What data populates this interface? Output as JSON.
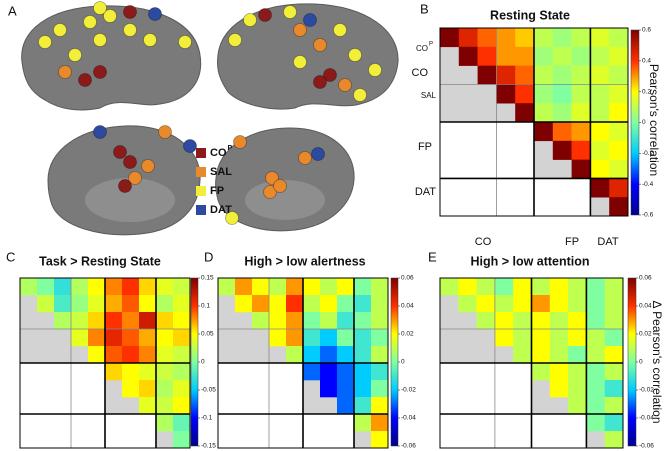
{
  "brain_panel": {
    "panel": "A",
    "legend": [
      {
        "label": "CO",
        "sup": "P",
        "color": "#8b1a1a"
      },
      {
        "label": "SAL",
        "color": "#e8892c"
      },
      {
        "label": "FP",
        "color": "#f3ee3a"
      },
      {
        "label": "DAT",
        "color": "#2b4aa0"
      }
    ]
  },
  "chart_data": [
    {
      "type": "heatmap",
      "panel": "B",
      "title": "Resting State",
      "row_labels": [
        {
          "label": "CO",
          "sup": "P"
        },
        {
          "label": "CO"
        },
        {
          "label": "SAL"
        },
        {
          "label": "FP"
        },
        {
          "label": "DAT"
        }
      ],
      "col_labels": [
        "CO",
        "FP",
        "DAT"
      ],
      "values": [
        [
          0.6,
          0.45,
          0.35,
          0.3,
          0.25,
          0.1,
          0.05,
          0.1,
          0.15,
          0.1
        ],
        [
          0.6,
          0.4,
          0.3,
          0.3,
          0.05,
          0.1,
          0.05,
          0.1,
          0.15
        ],
        [
          0.6,
          0.45,
          0.35,
          0.1,
          0.05,
          0.1,
          0.15,
          0.1
        ],
        [
          0.6,
          0.4,
          0.05,
          0,
          0.1,
          0.1,
          0.15
        ],
        [
          0.6,
          0.1,
          0.05,
          0.15,
          0.1,
          0.2
        ],
        [
          0.6,
          0.35,
          0.3,
          0.2,
          0.15
        ],
        [
          0.6,
          0.4,
          0.15,
          0.2
        ],
        [
          0.6,
          0.2,
          0.15
        ],
        [
          0.6,
          0.45
        ],
        [
          0.6
        ]
      ],
      "clim": [
        -0.6,
        0.6
      ],
      "cticks": [
        -0.6,
        -0.4,
        -0.2,
        0,
        0.2,
        0.4,
        0.6
      ],
      "colorbar_label": "Pearson's correlation",
      "colormap": [
        "#00008f",
        "#0000ff",
        "#00ccff",
        "#7fffa0",
        "#ffff00",
        "#ff3000",
        "#7f0000"
      ]
    },
    {
      "type": "heatmap",
      "panel": "C",
      "title": "Task > Resting State",
      "values": [
        [
          0.02,
          0,
          -0.03,
          0.02,
          0.05,
          0.08,
          0.1,
          0.06,
          0.04,
          0.03
        ],
        [
          0.03,
          -0.02,
          0.01,
          0.04,
          0.07,
          0.09,
          0.05,
          0.02,
          0.04
        ],
        [
          0.02,
          0.03,
          0.06,
          0.1,
          0.08,
          0.12,
          0.06,
          0.05
        ],
        [
          0.04,
          0.08,
          0.11,
          0.09,
          0.07,
          0.05,
          0.06
        ],
        [
          0.05,
          0.09,
          0.1,
          0.08,
          0.04,
          0.03
        ],
        [
          0.06,
          0.05,
          0.04,
          0.03,
          0.02
        ],
        [
          0.05,
          0.06,
          0.02,
          0.04
        ],
        [
          0.04,
          0.03,
          0.05
        ],
        [
          0.02,
          -0.01
        ],
        [
          0
        ]
      ],
      "clim": [
        -0.15,
        0.15
      ],
      "cticks": [
        -0.15,
        -0.1,
        -0.05,
        0,
        0.05,
        0.1,
        0.15
      ],
      "colormap": [
        "#00008f",
        "#0000ff",
        "#00ccff",
        "#7fffa0",
        "#ffff00",
        "#ff3000",
        "#7f0000"
      ]
    },
    {
      "type": "heatmap",
      "panel": "D",
      "title": "High > low alertness",
      "values": [
        [
          0.01,
          0.03,
          0.02,
          0.01,
          0.03,
          0.02,
          0.01,
          0.02,
          0,
          0.01
        ],
        [
          0.02,
          0.03,
          0.02,
          0.04,
          0.01,
          0.02,
          0,
          -0.01,
          0.01
        ],
        [
          0.01,
          0.02,
          0.03,
          0,
          0.01,
          -0.01,
          0,
          0.01
        ],
        [
          0.02,
          0.03,
          -0.01,
          -0.02,
          0,
          -0.01,
          0
        ],
        [
          0.01,
          -0.02,
          -0.03,
          -0.02,
          -0.01,
          0.01
        ],
        [
          -0.03,
          -0.04,
          -0.03,
          -0.02,
          -0.01
        ],
        [
          -0.04,
          -0.03,
          -0.02,
          0
        ],
        [
          -0.03,
          -0.01,
          0.02
        ],
        [
          0.01,
          0.03
        ],
        [
          0.02
        ]
      ],
      "clim": [
        -0.06,
        0.06
      ],
      "cticks": [
        -0.06,
        -0.04,
        -0.02,
        0,
        0.02,
        0.04,
        0.06
      ],
      "colormap": [
        "#00008f",
        "#0000ff",
        "#00ccff",
        "#7fffa0",
        "#ffff00",
        "#ff3000",
        "#7f0000"
      ]
    },
    {
      "type": "heatmap",
      "panel": "E",
      "title": "High > low attention",
      "values": [
        [
          0.01,
          0.02,
          0.01,
          0,
          0.02,
          0.01,
          0.02,
          0.01,
          0,
          0.01
        ],
        [
          0.01,
          0.02,
          0.01,
          0.02,
          0.03,
          0.02,
          0.01,
          0,
          0.01
        ],
        [
          0.01,
          0.02,
          0.01,
          0.02,
          0.01,
          0.02,
          0,
          0.01
        ],
        [
          0.02,
          0.01,
          0.02,
          0.01,
          0.02,
          0.01,
          0
        ],
        [
          0.01,
          0.02,
          0.01,
          0,
          0.01,
          0.02
        ],
        [
          0.01,
          0.02,
          0.01,
          0,
          0.01
        ],
        [
          0.02,
          0.01,
          0,
          -0.01
        ],
        [
          0.01,
          0,
          0.01
        ],
        [
          0,
          -0.01
        ],
        [
          0.01
        ]
      ],
      "clim": [
        -0.06,
        0.06
      ],
      "cticks": [
        -0.06,
        -0.04,
        -0.02,
        0,
        0.02,
        0.04,
        0.06
      ],
      "colorbar_label": "Δ Pearson's correlation",
      "colormap": [
        "#00008f",
        "#0000ff",
        "#00ccff",
        "#7fffa0",
        "#ffff00",
        "#ff3000",
        "#7f0000"
      ]
    }
  ]
}
